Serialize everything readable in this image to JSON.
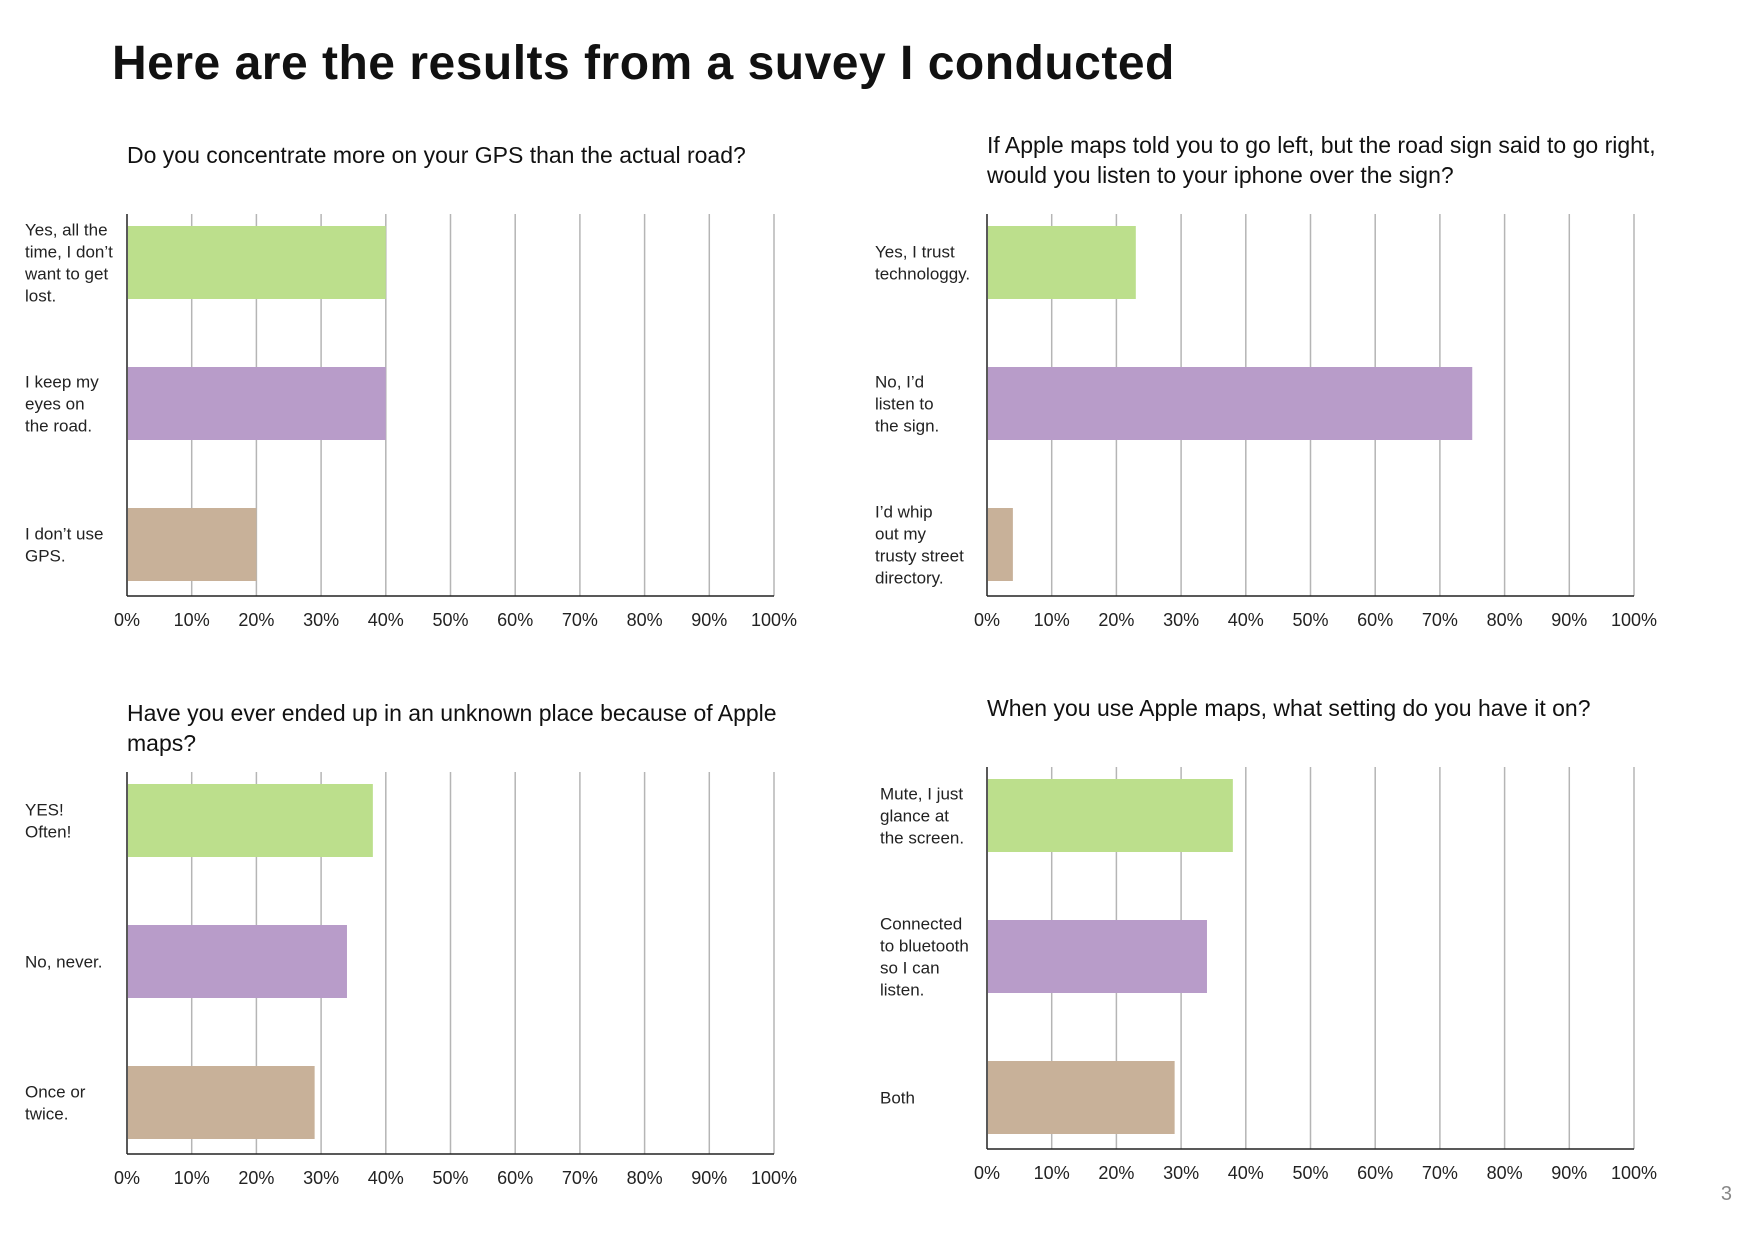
{
  "title": "Here are the results from a suvey I conducted",
  "page_number": "3",
  "colors": {
    "green": "#bcdf8c",
    "purple": "#b89cc9",
    "tan": "#c8b199",
    "grid": "#b5b5b5",
    "axis": "#222222"
  },
  "chart_data": [
    {
      "type": "bar",
      "orientation": "horizontal",
      "title": "Do you concentrate more on your GPS than the actual road?",
      "categories": [
        "Yes, all the time, I don’t want to get lost.",
        "I keep my eyes on the road.",
        "I don’t use GPS."
      ],
      "category_lines": [
        [
          "Yes, all the",
          "time, I don’t",
          "want to get",
          "lost."
        ],
        [
          "I keep my",
          "eyes on",
          "the road."
        ],
        [
          "I don’t use",
          "GPS."
        ]
      ],
      "values": [
        40,
        40,
        20
      ],
      "bar_colors": [
        "#bcdf8c",
        "#b89cc9",
        "#c8b199"
      ],
      "xlim": [
        0,
        100
      ],
      "xticks": [
        "0%",
        "10%",
        "20%",
        "30%",
        "40%",
        "50%",
        "60%",
        "70%",
        "80%",
        "90%",
        "100%"
      ],
      "grid": true
    },
    {
      "type": "bar",
      "orientation": "horizontal",
      "title": "If Apple maps told you to go left, but the road sign said to go right, would you listen to your iphone over the sign?",
      "categories": [
        "Yes, I trust technologgy.",
        "No, I’d listen to the sign.",
        "I’d whip out my trusty street directory."
      ],
      "category_lines": [
        [
          "Yes, I trust",
          "technologgy."
        ],
        [
          "No, I’d",
          "listen to",
          "the sign."
        ],
        [
          "I’d whip",
          "out my",
          "trusty street",
          "directory."
        ]
      ],
      "values": [
        23,
        75,
        4
      ],
      "bar_colors": [
        "#bcdf8c",
        "#b89cc9",
        "#c8b199"
      ],
      "xlim": [
        0,
        100
      ],
      "xticks": [
        "0%",
        "10%",
        "20%",
        "30%",
        "40%",
        "50%",
        "60%",
        "70%",
        "80%",
        "90%",
        "100%"
      ],
      "grid": true
    },
    {
      "type": "bar",
      "orientation": "horizontal",
      "title": "Have you ever ended up in an unknown place because of Apple maps?",
      "categories": [
        "YES! Often!",
        "No, never.",
        "Once or twice."
      ],
      "category_lines": [
        [
          "YES!",
          "Often!"
        ],
        [
          "No, never."
        ],
        [
          "Once or",
          "twice."
        ]
      ],
      "values": [
        38,
        34,
        29
      ],
      "bar_colors": [
        "#bcdf8c",
        "#b89cc9",
        "#c8b199"
      ],
      "xlim": [
        0,
        100
      ],
      "xticks": [
        "0%",
        "10%",
        "20%",
        "30%",
        "40%",
        "50%",
        "60%",
        "70%",
        "80%",
        "90%",
        "100%"
      ],
      "grid": true
    },
    {
      "type": "bar",
      "orientation": "horizontal",
      "title": "When you use Apple maps, what setting do you have it on?",
      "categories": [
        "Mute, I just glance at the screen.",
        "Connected to bluetooth so I can listen.",
        "Both"
      ],
      "category_lines": [
        [
          "Mute, I just",
          "glance at",
          "the screen."
        ],
        [
          "Connected",
          "to bluetooth",
          "so I can",
          "listen."
        ],
        [
          "Both"
        ]
      ],
      "values": [
        38,
        34,
        29
      ],
      "bar_colors": [
        "#bcdf8c",
        "#b89cc9",
        "#c8b199"
      ],
      "xlim": [
        0,
        100
      ],
      "xticks": [
        "0%",
        "10%",
        "20%",
        "30%",
        "40%",
        "50%",
        "60%",
        "70%",
        "80%",
        "90%",
        "100%"
      ],
      "grid": true
    }
  ]
}
